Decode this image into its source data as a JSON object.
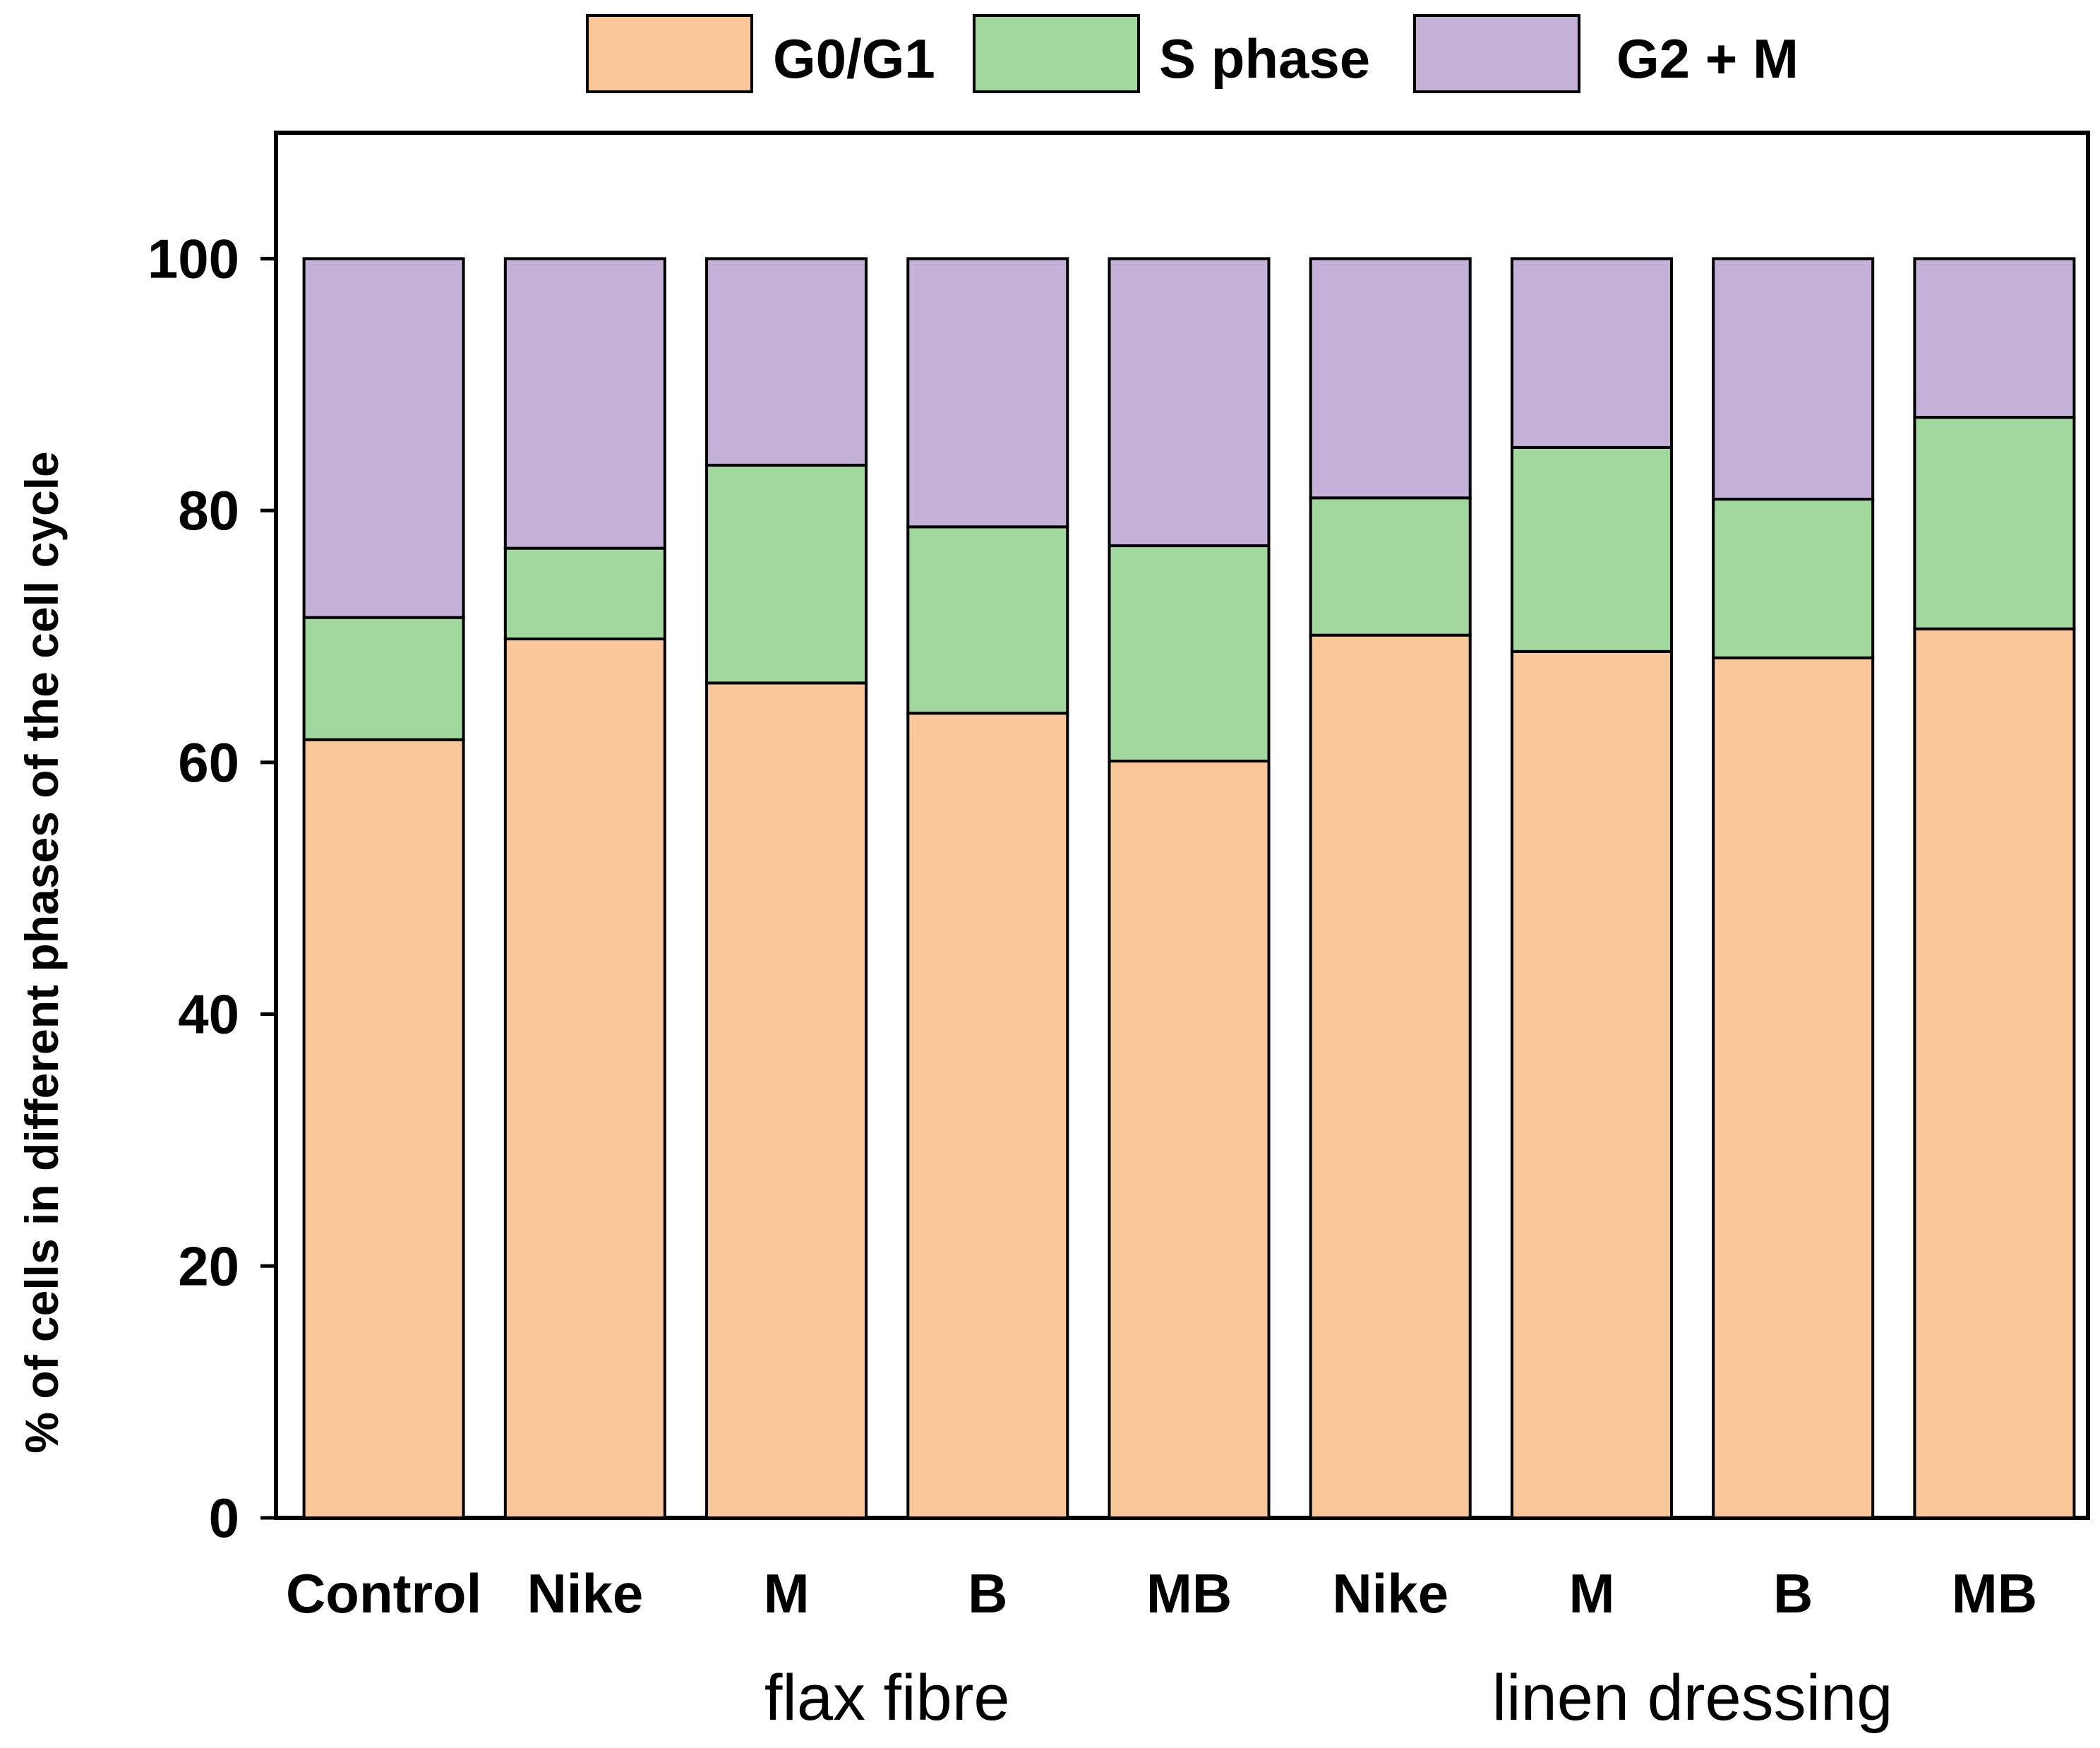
{
  "chart_data": {
    "type": "bar",
    "stacked": true,
    "title": "",
    "xlabel": "",
    "ylabel": "% of cells in different phases of the cell cycle",
    "ylim": [
      0,
      110
    ],
    "yticks": [
      0,
      20,
      40,
      60,
      80,
      100
    ],
    "grid": false,
    "legend_position": "top-center",
    "categories": [
      "Control",
      "Nike",
      "M",
      "B",
      "MB",
      "Nike",
      "M",
      "B",
      "MB"
    ],
    "groups": [
      {
        "label": "flax fibre",
        "categories": [
          1,
          2,
          3,
          4
        ]
      },
      {
        "label": "linen dressing",
        "categories": [
          5,
          6,
          7,
          8
        ]
      }
    ],
    "series": [
      {
        "name": "G0/G1",
        "color": "#FAC898",
        "values": [
          61.8,
          69.8,
          66.3,
          63.9,
          60.1,
          70.1,
          68.8,
          68.3,
          70.6
        ]
      },
      {
        "name": "S phase",
        "color": "#A0D89E",
        "values": [
          9.7,
          7.2,
          17.3,
          14.8,
          17.1,
          10.9,
          16.2,
          12.6,
          16.8
        ]
      },
      {
        "name": "G2 + M",
        "color": "#C3B1D7",
        "values": [
          28.5,
          23.0,
          16.4,
          21.3,
          22.8,
          19.0,
          15.0,
          19.1,
          12.6
        ]
      }
    ]
  }
}
